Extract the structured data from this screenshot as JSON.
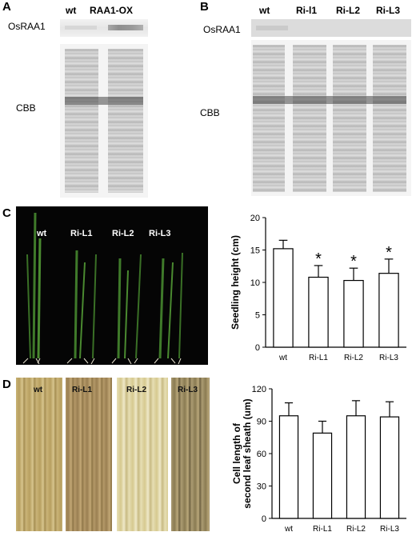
{
  "panels": {
    "A": {
      "letter": "A",
      "lane_labels": [
        "wt",
        "RAA1-OX"
      ],
      "blot_label": "OsRAA1",
      "stain_label": "CBB"
    },
    "B": {
      "letter": "B",
      "lane_labels": [
        "wt",
        "Ri-l1",
        "Ri-L2",
        "Ri-L3"
      ],
      "blot_label": "OsRAA1",
      "stain_label": "CBB"
    },
    "C": {
      "letter": "C",
      "photo_labels": [
        "wt",
        "Ri-L1",
        "Ri-L2",
        "Ri-L3"
      ]
    },
    "D": {
      "letter": "D",
      "photo_labels": [
        "wt",
        "Ri-L1",
        "Ri-L2",
        "Ri-L3"
      ]
    }
  },
  "chart_data": [
    {
      "type": "bar",
      "categories": [
        "wt",
        "Ri-L1",
        "Ri-L2",
        "Ri-L3"
      ],
      "values": [
        15.2,
        10.8,
        10.3,
        11.4
      ],
      "errors": [
        1.3,
        1.8,
        1.9,
        2.2
      ],
      "significance": [
        "",
        "*",
        "*",
        "*"
      ],
      "ylabel": "Seedling height (cm)",
      "ylim": [
        0,
        20
      ],
      "yticks": [
        0,
        5,
        10,
        15,
        20
      ],
      "bar_color": "#ffffff"
    },
    {
      "type": "bar",
      "categories": [
        "wt",
        "Ri-L1",
        "Ri-L2",
        "Ri-L3"
      ],
      "values": [
        95,
        79,
        95,
        94
      ],
      "errors": [
        12,
        11,
        14,
        14
      ],
      "significance": [
        "",
        "",
        "",
        ""
      ],
      "ylabel": "Cell length of second leaf sheath (um)",
      "ylim": [
        0,
        120
      ],
      "yticks": [
        0,
        30,
        60,
        90,
        120
      ],
      "bar_color": "#ffffff"
    }
  ]
}
